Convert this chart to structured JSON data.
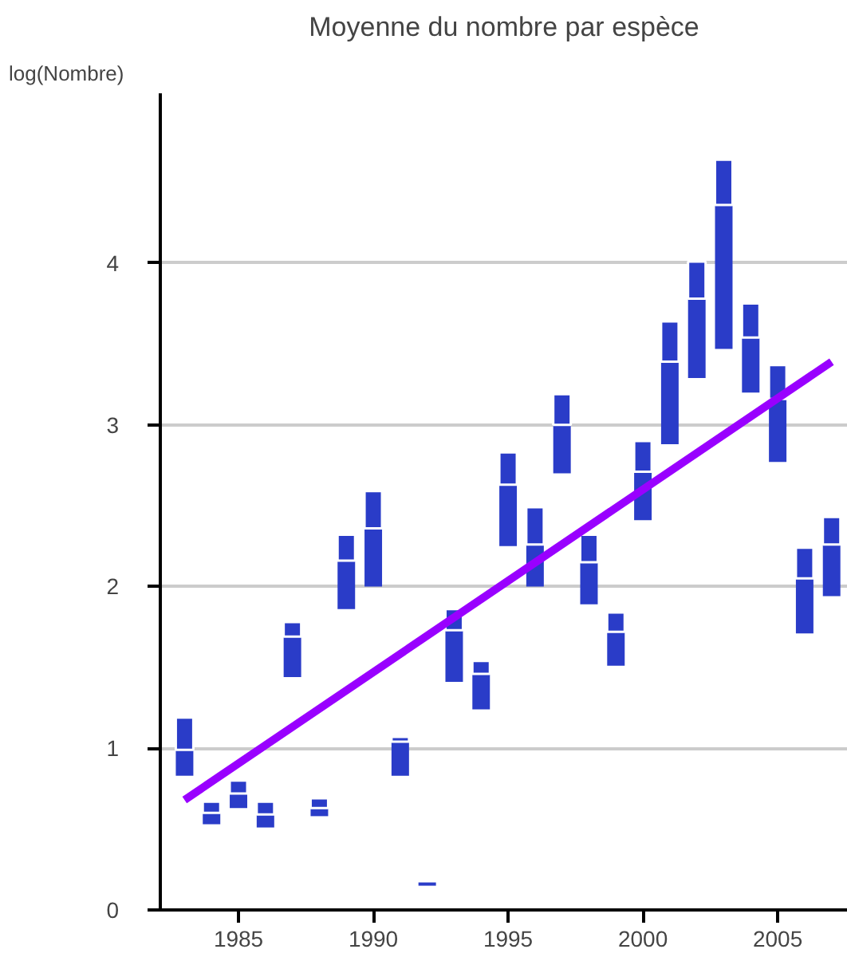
{
  "chart_data": {
    "type": "bar",
    "title": "Moyenne du nombre par espèce",
    "ylabel": "log(Nombre)",
    "x": [
      1983,
      1984,
      1985,
      1986,
      1987,
      1988,
      1989,
      1990,
      1991,
      1992,
      1993,
      1994,
      1995,
      1996,
      1997,
      1998,
      1999,
      2000,
      2001,
      2002,
      2003,
      2004,
      2005,
      2006,
      2007
    ],
    "series": [
      {
        "color": "#2a3cc8",
        "base": [
          0.83,
          0.53,
          0.63,
          0.51,
          1.44,
          0.58,
          1.86,
          2.0,
          0.83,
          0.15,
          1.41,
          1.24,
          2.25,
          2.0,
          2.7,
          1.89,
          1.51,
          2.41,
          2.88,
          3.29,
          3.47,
          3.2,
          2.77,
          1.71,
          1.94
        ],
        "values": [
          0.16,
          0.07,
          0.09,
          0.08,
          0.25,
          0.05,
          0.3,
          0.36,
          0.21,
          0.02,
          0.32,
          0.22,
          0.38,
          0.26,
          0.3,
          0.26,
          0.21,
          0.3,
          0.51,
          0.49,
          0.89,
          0.34,
          0.39,
          0.34,
          0.32
        ]
      },
      {
        "color": "#2a3cc8",
        "base": [
          0.99,
          0.6,
          0.72,
          0.59,
          1.69,
          0.63,
          2.16,
          2.36,
          1.04,
          null,
          1.73,
          1.46,
          2.63,
          2.26,
          3.0,
          2.15,
          1.72,
          2.71,
          3.39,
          3.78,
          4.36,
          3.54,
          3.16,
          2.05,
          2.26
        ],
        "values": [
          0.2,
          0.07,
          0.08,
          0.08,
          0.09,
          0.06,
          0.16,
          0.23,
          0.03,
          null,
          0.13,
          0.08,
          0.2,
          0.23,
          0.19,
          0.17,
          0.12,
          0.19,
          0.25,
          0.23,
          0.28,
          0.21,
          0.21,
          0.19,
          0.17
        ]
      },
      {
        "type": "line",
        "color": "#9900ff",
        "x": [
          1983,
          2007
        ],
        "values": [
          0.68,
          3.39
        ]
      }
    ],
    "xlim": [
      1982.1,
      2007.6
    ],
    "ylim": [
      0,
      5.05
    ],
    "xticks": [
      1985,
      1990,
      1995,
      2000,
      2005
    ],
    "yticks": [
      0,
      1,
      2,
      3,
      4
    ],
    "grid": "y"
  }
}
